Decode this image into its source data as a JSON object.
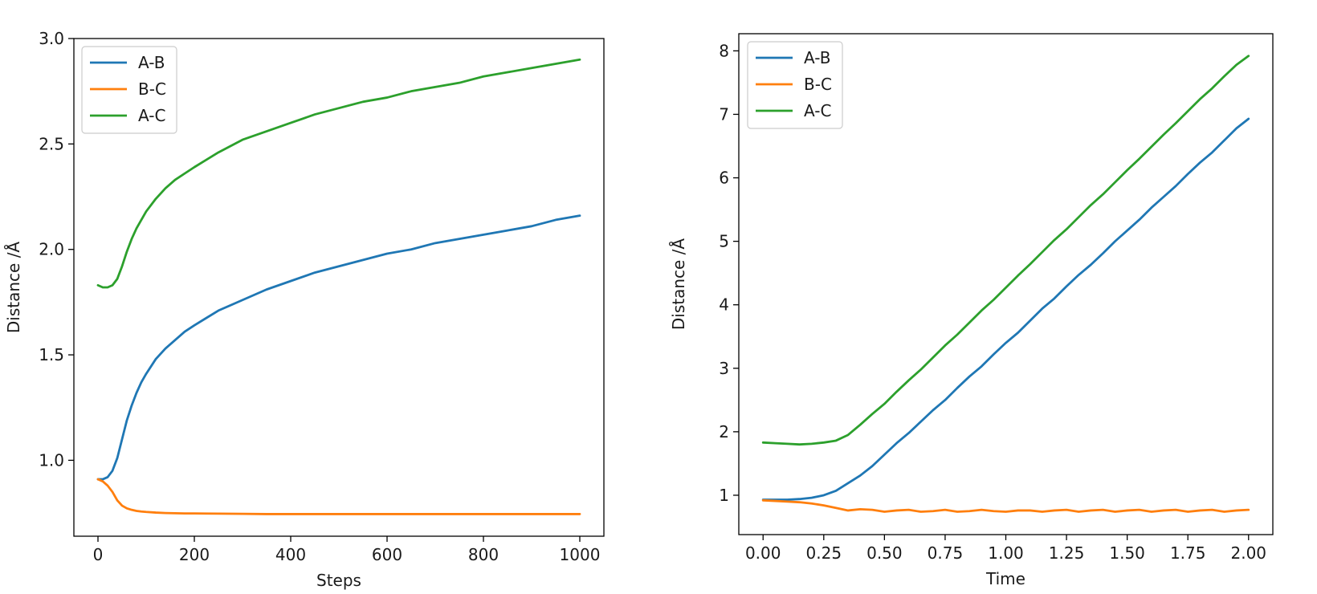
{
  "chart_data": [
    {
      "type": "line",
      "title": "",
      "xlabel": "Steps",
      "ylabel": "Distance /Å",
      "xlim": [
        -50,
        1050
      ],
      "ylim": [
        0.64,
        3.0
      ],
      "xticks": [
        0,
        200,
        400,
        600,
        800,
        1000
      ],
      "xtick_labels": [
        "0",
        "200",
        "400",
        "600",
        "800",
        "1000"
      ],
      "yticks": [
        1.0,
        1.5,
        2.0,
        2.5,
        3.0
      ],
      "ytick_labels": [
        "1.0",
        "1.5",
        "2.0",
        "2.5",
        "3.0"
      ],
      "grid": false,
      "legend_position": "upper-left",
      "x": [
        0,
        10,
        20,
        30,
        40,
        50,
        60,
        70,
        80,
        90,
        100,
        120,
        140,
        160,
        180,
        200,
        250,
        300,
        350,
        400,
        450,
        500,
        550,
        600,
        650,
        700,
        750,
        800,
        850,
        900,
        950,
        1000
      ],
      "series": [
        {
          "name": "A-B",
          "color": "#1f77b4",
          "values": [
            0.91,
            0.91,
            0.92,
            0.95,
            1.01,
            1.1,
            1.19,
            1.26,
            1.32,
            1.37,
            1.41,
            1.48,
            1.53,
            1.57,
            1.61,
            1.64,
            1.71,
            1.76,
            1.81,
            1.85,
            1.89,
            1.92,
            1.95,
            1.98,
            2.0,
            2.03,
            2.05,
            2.07,
            2.09,
            2.11,
            2.14,
            2.16
          ]
        },
        {
          "name": "B-C",
          "color": "#ff7f0e",
          "values": [
            0.91,
            0.9,
            0.88,
            0.85,
            0.81,
            0.785,
            0.772,
            0.765,
            0.76,
            0.757,
            0.755,
            0.752,
            0.75,
            0.749,
            0.748,
            0.748,
            0.747,
            0.746,
            0.745,
            0.745,
            0.745,
            0.745,
            0.745,
            0.745,
            0.745,
            0.745,
            0.745,
            0.745,
            0.745,
            0.745,
            0.745,
            0.745
          ]
        },
        {
          "name": "A-C",
          "color": "#2ca02c",
          "values": [
            1.83,
            1.82,
            1.82,
            1.83,
            1.86,
            1.92,
            1.99,
            2.05,
            2.1,
            2.14,
            2.18,
            2.24,
            2.29,
            2.33,
            2.36,
            2.39,
            2.46,
            2.52,
            2.56,
            2.6,
            2.64,
            2.67,
            2.7,
            2.72,
            2.75,
            2.77,
            2.79,
            2.82,
            2.84,
            2.86,
            2.88,
            2.9
          ]
        }
      ]
    },
    {
      "type": "line",
      "title": "",
      "xlabel": "Time",
      "ylabel": "Distance /Å",
      "xlim": [
        -0.1,
        2.1
      ],
      "ylim": [
        0.38,
        8.27
      ],
      "xticks": [
        0.0,
        0.25,
        0.5,
        0.75,
        1.0,
        1.25,
        1.5,
        1.75,
        2.0
      ],
      "xtick_labels": [
        "0.00",
        "0.25",
        "0.50",
        "0.75",
        "1.00",
        "1.25",
        "1.50",
        "1.75",
        "2.00"
      ],
      "yticks": [
        1,
        2,
        3,
        4,
        5,
        6,
        7,
        8
      ],
      "ytick_labels": [
        "1",
        "2",
        "3",
        "4",
        "5",
        "6",
        "7",
        "8"
      ],
      "grid": false,
      "legend_position": "upper-left",
      "x": [
        0.0,
        0.05,
        0.1,
        0.15,
        0.2,
        0.25,
        0.3,
        0.35,
        0.4,
        0.45,
        0.5,
        0.55,
        0.6,
        0.65,
        0.7,
        0.75,
        0.8,
        0.85,
        0.9,
        0.95,
        1.0,
        1.05,
        1.1,
        1.15,
        1.2,
        1.25,
        1.3,
        1.35,
        1.4,
        1.45,
        1.5,
        1.55,
        1.6,
        1.65,
        1.7,
        1.75,
        1.8,
        1.85,
        1.9,
        1.95,
        2.0
      ],
      "series": [
        {
          "name": "A-B",
          "color": "#1f77b4",
          "values": [
            0.93,
            0.93,
            0.93,
            0.94,
            0.96,
            1.0,
            1.07,
            1.19,
            1.31,
            1.46,
            1.64,
            1.82,
            1.98,
            2.16,
            2.34,
            2.5,
            2.69,
            2.87,
            3.03,
            3.22,
            3.4,
            3.56,
            3.75,
            3.94,
            4.1,
            4.29,
            4.47,
            4.63,
            4.81,
            5.0,
            5.17,
            5.34,
            5.53,
            5.7,
            5.87,
            6.06,
            6.24,
            6.4,
            6.59,
            6.78,
            6.93
          ]
        },
        {
          "name": "B-C",
          "color": "#ff7f0e",
          "values": [
            0.92,
            0.91,
            0.9,
            0.89,
            0.87,
            0.84,
            0.8,
            0.76,
            0.78,
            0.77,
            0.74,
            0.76,
            0.77,
            0.74,
            0.75,
            0.77,
            0.74,
            0.75,
            0.77,
            0.75,
            0.74,
            0.76,
            0.76,
            0.74,
            0.76,
            0.77,
            0.74,
            0.76,
            0.77,
            0.74,
            0.76,
            0.77,
            0.74,
            0.76,
            0.77,
            0.74,
            0.76,
            0.77,
            0.74,
            0.76,
            0.77
          ]
        },
        {
          "name": "A-C",
          "color": "#2ca02c",
          "values": [
            1.83,
            1.82,
            1.81,
            1.8,
            1.81,
            1.83,
            1.86,
            1.95,
            2.11,
            2.28,
            2.44,
            2.63,
            2.81,
            2.98,
            3.17,
            3.36,
            3.53,
            3.72,
            3.91,
            4.08,
            4.27,
            4.46,
            4.64,
            4.83,
            5.02,
            5.19,
            5.38,
            5.57,
            5.74,
            5.93,
            6.12,
            6.3,
            6.49,
            6.68,
            6.86,
            7.05,
            7.24,
            7.41,
            7.6,
            7.78,
            7.92
          ]
        }
      ]
    }
  ]
}
